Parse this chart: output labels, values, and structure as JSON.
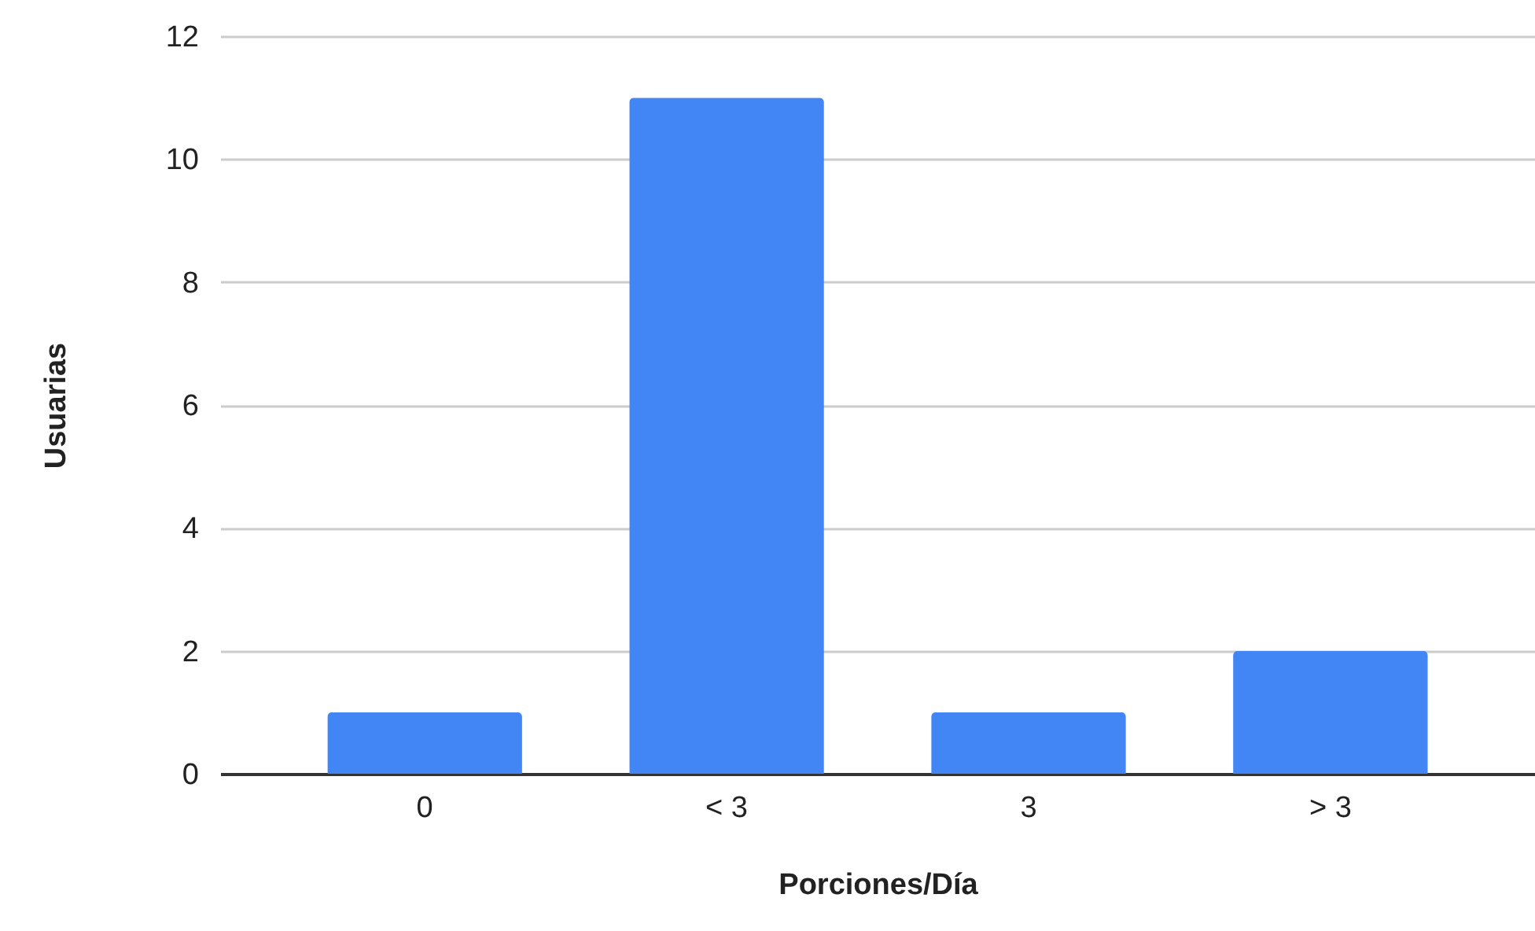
{
  "chart_data": {
    "type": "bar",
    "xlabel": "Porciones/Día",
    "ylabel": "Usuarias",
    "categories": [
      "0",
      "< 3",
      "3",
      "> 3"
    ],
    "values": [
      1,
      11,
      1,
      2
    ],
    "color": "#4285f4",
    "ylim": [
      0,
      12
    ],
    "yticks": [
      0,
      2,
      4,
      6,
      8,
      10,
      12
    ],
    "grid": "y"
  }
}
